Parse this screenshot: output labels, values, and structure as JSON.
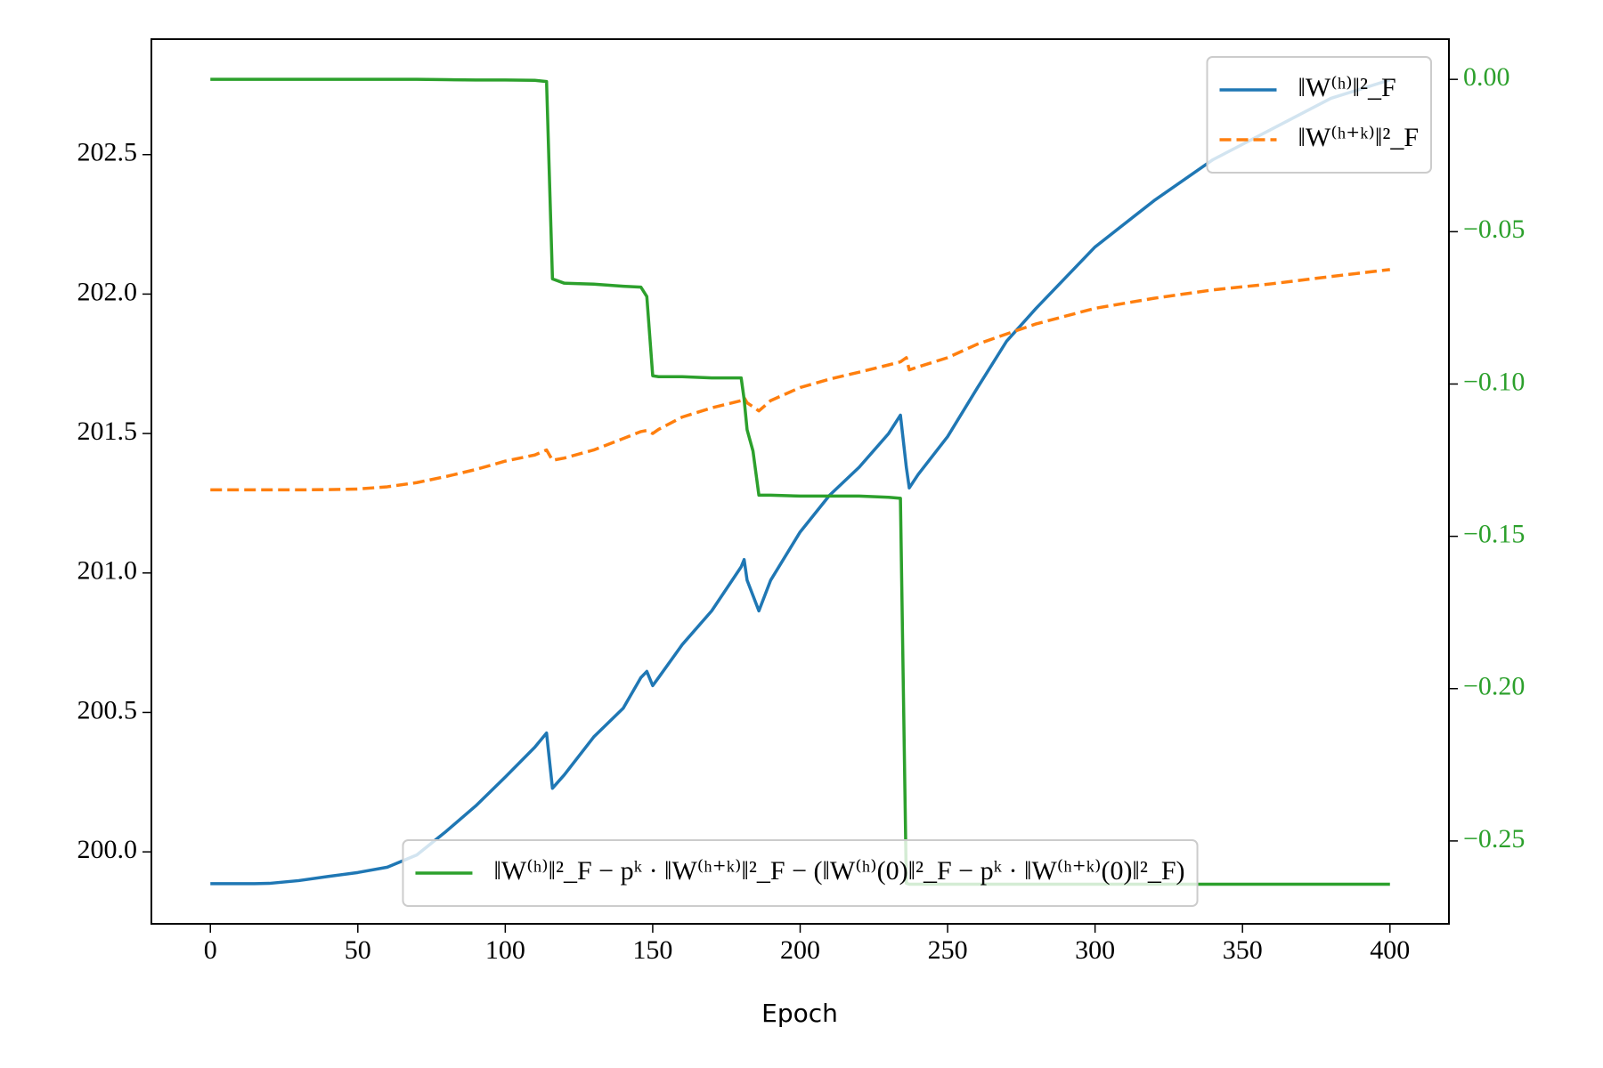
{
  "chart_data": {
    "type": "line",
    "xlabel": "Epoch",
    "x": [
      0,
      5,
      10,
      15,
      20,
      30,
      40,
      50,
      60,
      70,
      80,
      90,
      100,
      110,
      114,
      116,
      120,
      130,
      140,
      146,
      148,
      150,
      152,
      160,
      170,
      180,
      181,
      182,
      184,
      186,
      190,
      200,
      210,
      220,
      230,
      234,
      236,
      237,
      240,
      250,
      260,
      270,
      280,
      300,
      320,
      340,
      360,
      380,
      400
    ],
    "xlim": [
      -20,
      420
    ],
    "xticks": [
      0,
      50,
      100,
      150,
      200,
      250,
      300,
      350,
      400
    ],
    "ylim": [
      199.742,
      202.914
    ],
    "yticks": [
      {
        "value": 200,
        "label": "200.0"
      },
      200.5,
      {
        "value": 201,
        "label": "201.0"
      },
      201.5,
      {
        "value": 202,
        "label": "202.0"
      },
      202.5
    ],
    "y2lim": [
      -0.2772,
      0.0132
    ],
    "y2ticks": [
      {
        "value": -0.25,
        "label": "−0.25"
      },
      {
        "value": -0.2,
        "label": "−0.20"
      },
      {
        "value": -0.15,
        "label": "−0.15"
      },
      {
        "value": -0.1,
        "label": "−0.10"
      },
      {
        "value": -0.05,
        "label": "−0.05"
      },
      {
        "value": 0,
        "label": "0.00"
      }
    ],
    "y2_color": "#2ca02c",
    "grid": false,
    "legend_loc": "upper right",
    "legend2_loc": "lower center",
    "series": [
      {
        "name": "‖W⁽ʰ⁾‖²_F",
        "color": "#1f77b4",
        "linestyle": "solid",
        "values": [
          199.886,
          199.886,
          199.886,
          199.886,
          199.887,
          199.897,
          199.912,
          199.926,
          199.945,
          199.989,
          200.074,
          200.165,
          200.268,
          200.375,
          200.426,
          200.228,
          200.276,
          200.412,
          200.515,
          200.625,
          200.647,
          200.596,
          200.625,
          200.743,
          200.864,
          201.022,
          201.048,
          200.974,
          200.919,
          200.864,
          200.974,
          201.147,
          201.279,
          201.379,
          201.5,
          201.566,
          201.379,
          201.305,
          201.353,
          201.489,
          201.662,
          201.831,
          201.949,
          202.169,
          202.335,
          202.482,
          202.592,
          202.702,
          202.768
        ]
      },
      {
        "name": "‖W⁽ʰ⁺ᵏ⁾‖²_F",
        "color": "#ff7f0e",
        "linestyle": "dashed",
        "values": [
          201.298,
          201.298,
          201.298,
          201.298,
          201.298,
          201.298,
          201.299,
          201.301,
          201.309,
          201.324,
          201.346,
          201.371,
          201.401,
          201.423,
          201.441,
          201.404,
          201.412,
          201.441,
          201.482,
          201.507,
          201.511,
          201.5,
          201.515,
          201.559,
          201.592,
          201.618,
          201.629,
          201.61,
          201.596,
          201.581,
          201.618,
          201.665,
          201.695,
          201.72,
          201.746,
          201.757,
          201.772,
          201.728,
          201.739,
          201.772,
          201.82,
          201.857,
          201.893,
          201.949,
          201.985,
          202.015,
          202.037,
          202.063,
          202.088
        ]
      },
      {
        "name": "‖W⁽ʰ⁾‖²_F − pᵏ · ‖W⁽ʰ⁺ᵏ⁾‖²_F − (‖W⁽ʰ⁾(0)‖²_F − pᵏ · ‖W⁽ʰ⁺ᵏ⁾(0)‖²_F)",
        "color": "#2ca02c",
        "linestyle": "solid",
        "axis": "y2",
        "values": [
          0,
          0,
          0,
          0,
          0,
          0,
          0,
          0,
          0,
          0,
          -0.0001,
          -0.0002,
          -0.0002,
          -0.0003,
          -0.0007,
          -0.0655,
          -0.0669,
          -0.0672,
          -0.0679,
          -0.0682,
          -0.0713,
          -0.0973,
          -0.0976,
          -0.0976,
          -0.098,
          -0.098,
          -0.105,
          -0.115,
          -0.122,
          -0.1365,
          -0.1365,
          -0.1368,
          -0.1368,
          -0.1368,
          -0.1372,
          -0.1375,
          -0.2639,
          -0.2642,
          -0.2642,
          -0.2642,
          -0.2642,
          -0.2642,
          -0.2642,
          -0.2642,
          -0.2642,
          -0.2642,
          -0.2642,
          -0.2642,
          -0.2642
        ]
      }
    ]
  }
}
